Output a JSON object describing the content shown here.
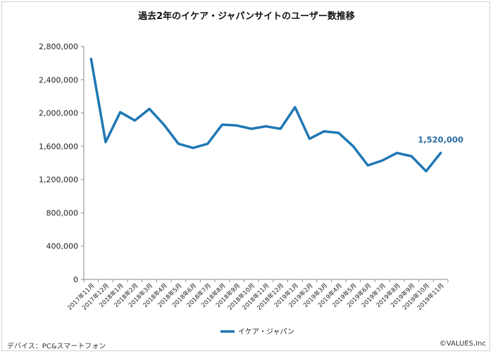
{
  "chart_data": {
    "type": "line",
    "title": "過去2年のイケア・ジャパンサイトのユーザー数推移",
    "xlabel": "",
    "ylabel": "",
    "ylim": [
      0,
      2800000
    ],
    "yticks": [
      0,
      400000,
      800000,
      1200000,
      1600000,
      2000000,
      2400000,
      2800000
    ],
    "ytick_labels": [
      "0",
      "400,000",
      "800,000",
      "1,200,000",
      "1,600,000",
      "2,000,000",
      "2,400,000",
      "2,800,000"
    ],
    "categories": [
      "2017年11月",
      "2017年12月",
      "2018年1月",
      "2018年2月",
      "2018年3月",
      "2018年4月",
      "2018年5月",
      "2018年6月",
      "2018年7月",
      "2018年8月",
      "2018年9月",
      "2018年10月",
      "2018年11月",
      "2018年12月",
      "2019年1月",
      "2019年2月",
      "2019年3月",
      "2019年4月",
      "2019年5月",
      "2019年6月",
      "2019年7月",
      "2019年8月",
      "2019年9月",
      "2019年10月",
      "2019年11月"
    ],
    "series": [
      {
        "name": "イケア・ジャパン",
        "color": "#1f77b4",
        "values": [
          2650000,
          1650000,
          2010000,
          1910000,
          2050000,
          1860000,
          1630000,
          1580000,
          1630000,
          1860000,
          1850000,
          1810000,
          1840000,
          1810000,
          2070000,
          1690000,
          1780000,
          1760000,
          1600000,
          1370000,
          1430000,
          1520000,
          1480000,
          1300000,
          1520000
        ]
      }
    ],
    "annotation": {
      "label": "1,520,000",
      "index": 24,
      "color": "#2b6ca3"
    },
    "grid": false,
    "legend_position": "bottom"
  },
  "footer": {
    "device_note": "デバイス：PC&スマートフォン",
    "copyright": "©VALUES,Inc"
  }
}
